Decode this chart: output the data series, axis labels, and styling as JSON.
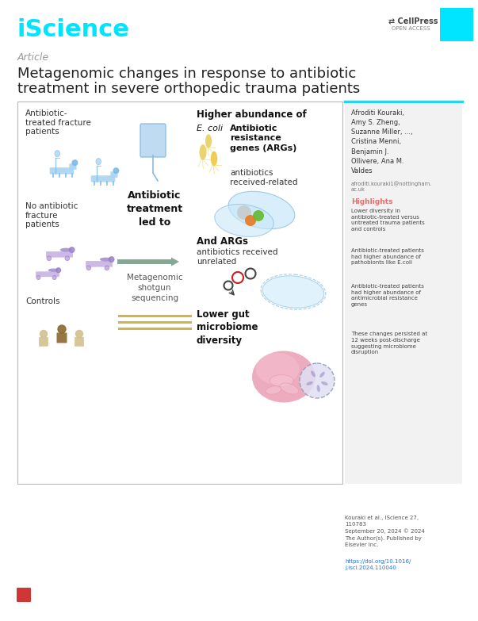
{
  "title_iscience": "iScience",
  "title_iscience_color": "#00e5ff",
  "cellpress_box_color": "#00e5ff",
  "article_label": "Article",
  "article_color": "#9a9a9a",
  "main_title_line1": "Metagenomic changes in response to antibiotic",
  "main_title_line2": "treatment in severe orthopedic trauma patients",
  "main_title_color": "#222222",
  "bg_color": "#ffffff",
  "sidebar_bg": "#f2f2f2",
  "sidebar_top_line": "#00e5ff",
  "authors": "Afroditi Kouraki,\nAmy S. Zheng,\nSuzanne Miller, ...,\nCristina Menni,\nBenjamin J.\nOllivere, Ana M.\nValdes",
  "email": "afroditi.kouraki1@nottingham.\nac.uk",
  "highlights_label": "Highlights",
  "highlights_color": "#e07070",
  "highlight1": "Lower diversity in\nantibiotic-treated versus\nuntreated trauma patients\nand controls",
  "highlight2": "Antibiotic-treated patients\nhad higher abundance of\npathobionts like E.coli",
  "highlight3": "Antibiotic-treated patients\nhad higher abundance of\nantimicrobial resistance\ngenes",
  "highlight4": "These changes persisted at\n12 weeks post-discharge\nsuggesting microbiome\ndisruption",
  "footer_ref": "Kouraki et al., iScience 27,\n110783\nSeptember 20, 2024 © 2024\nThe Author(s). Published by\nElsevier Inc.",
  "footer_link": "https://doi.org/10.1016/\nj.isci.2024.110040",
  "footer_link_color": "#1a73e8",
  "box_label1": "Antibiotic-\ntreated fracture\npatients",
  "box_label2": "No antibiotic\nfracture\npatients",
  "box_label3": "Controls",
  "box_center": "Antibiotic\ntreatment\nled to",
  "box_center2": "Metagenomic\nshotgun\nsequencing",
  "box_right1": "Higher abundance of",
  "box_right2_italic": "E. coli",
  "box_right3a": "Antibiotic\nresistance\ngenes (ARGs)",
  "box_right3b": "antibiotics\nreceived-related",
  "box_right4a": "And ARGs",
  "box_right4b": "antibiotics received\nunrelated",
  "box_right5": "Lower gut\nmicrobiome\ndiversity",
  "patient_color_blue": "#7abce8",
  "patient_color_blue_light": "#aad4f0",
  "patient_color_purple": "#9b80c8",
  "patient_color_purple_light": "#c0a8e0",
  "control_color_light": "#d4c090",
  "control_color_dark": "#8B6830",
  "arrow_color": "#7a9e8a",
  "iv_color": "#88bbe0",
  "bacteria_yellow": "#e8d060",
  "bacteria_yellow2": "#f0c840",
  "bact_fill": "#c8e8f8",
  "bact_edge": "#80b8e0",
  "orange_circle": "#e87820",
  "green_circle": "#60b830",
  "gray_circle": "#c8c8c8",
  "red_ring": "#cc2020",
  "dark_ring": "#444444",
  "gut_pink": "#e890a8",
  "gut_light": "#f4c0d0",
  "micro_fill": "#e0e0f4",
  "micro_edge": "#9090c0",
  "dna_color": "#c8a020",
  "seq_line_color": "#c8a828"
}
